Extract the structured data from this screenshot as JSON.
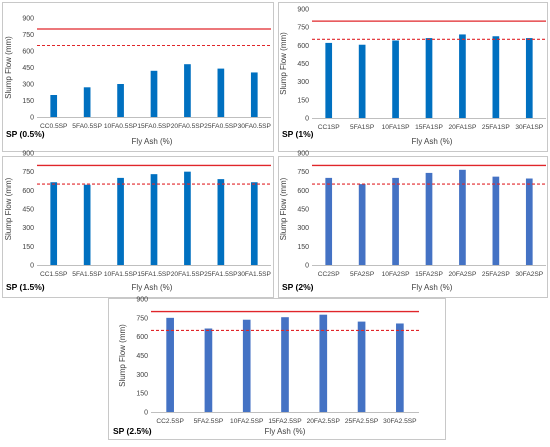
{
  "chart_data": [
    {
      "type": "bar",
      "panel_label": "SP (0.5%)",
      "xlabel": "Fly Ash (%)",
      "ylabel": "Slump Flow (mm)",
      "ylim": [
        0,
        900
      ],
      "yticks": [
        0,
        150,
        300,
        450,
        600,
        750,
        900
      ],
      "reference_lines": [
        {
          "value": 800,
          "style": "solid"
        },
        {
          "value": 650,
          "style": "dashed"
        }
      ],
      "categories": [
        "CC0.5SP",
        "5FA0.5SP",
        "10FA0.5SP",
        "15FA0.5SP",
        "20FA0.5SP",
        "25FA0.5SP",
        "30FA0.5SP"
      ],
      "values": [
        200,
        270,
        300,
        420,
        480,
        440,
        405
      ],
      "bar_color": "#0070c0"
    },
    {
      "type": "bar",
      "panel_label": "SP (1%)",
      "xlabel": "Fly Ash (%)",
      "ylabel": "Slump Flow (mm)",
      "ylim": [
        0,
        900
      ],
      "yticks": [
        0,
        150,
        300,
        450,
        600,
        750,
        900
      ],
      "reference_lines": [
        {
          "value": 800,
          "style": "solid"
        },
        {
          "value": 650,
          "style": "dashed"
        }
      ],
      "categories": [
        "CC1SP",
        "5FA1SP",
        "10FA1SP",
        "15FA1SP",
        "20FA1SP",
        "25FA1SP",
        "30FA1SP"
      ],
      "values": [
        620,
        605,
        640,
        660,
        690,
        675,
        660
      ],
      "bar_color": "#0070c0"
    },
    {
      "type": "bar",
      "panel_label": "SP (1.5%)",
      "xlabel": "Fly Ash (%)",
      "ylabel": "Slump Flow (mm)",
      "ylim": [
        0,
        900
      ],
      "yticks": [
        0,
        150,
        300,
        450,
        600,
        750,
        900
      ],
      "reference_lines": [
        {
          "value": 800,
          "style": "solid"
        },
        {
          "value": 650,
          "style": "dashed"
        }
      ],
      "categories": [
        "CC1.5SP",
        "5FA1.5SP",
        "10FA1.5SP",
        "15FA1.5SP",
        "20FA1.5SP",
        "25FA1.5SP",
        "30FA1.5SP"
      ],
      "values": [
        665,
        645,
        700,
        730,
        750,
        690,
        665
      ],
      "bar_color": "#0070c0"
    },
    {
      "type": "bar",
      "panel_label": "SP (2%)",
      "xlabel": "Fly Ash (%)",
      "ylabel": "Slump Flow (mm)",
      "ylim": [
        0,
        900
      ],
      "yticks": [
        0,
        150,
        300,
        450,
        600,
        750,
        900
      ],
      "reference_lines": [
        {
          "value": 800,
          "style": "solid"
        },
        {
          "value": 650,
          "style": "dashed"
        }
      ],
      "categories": [
        "CC2SP",
        "5FA2SP",
        "10FA2SP",
        "15FA2SP",
        "20FA2SP",
        "25FA2SP",
        "30FA2SP"
      ],
      "values": [
        700,
        650,
        700,
        740,
        765,
        710,
        695
      ],
      "bar_color": "#4472c4"
    },
    {
      "type": "bar",
      "panel_label": "SP (2.5%)",
      "xlabel": "Fly Ash (%)",
      "ylabel": "Slump Flow (mm)",
      "ylim": [
        0,
        900
      ],
      "yticks": [
        0,
        150,
        300,
        450,
        600,
        750,
        900
      ],
      "reference_lines": [
        {
          "value": 800,
          "style": "solid"
        },
        {
          "value": 650,
          "style": "dashed"
        }
      ],
      "categories": [
        "CC2.5SP",
        "5FA2.5SP",
        "10FA2.5SP",
        "15FA2.5SP",
        "20FA2.5SP",
        "25FA2.5SP",
        "30FA2.5SP"
      ],
      "values": [
        750,
        665,
        735,
        755,
        775,
        720,
        705
      ],
      "bar_color": "#4472c4"
    }
  ]
}
